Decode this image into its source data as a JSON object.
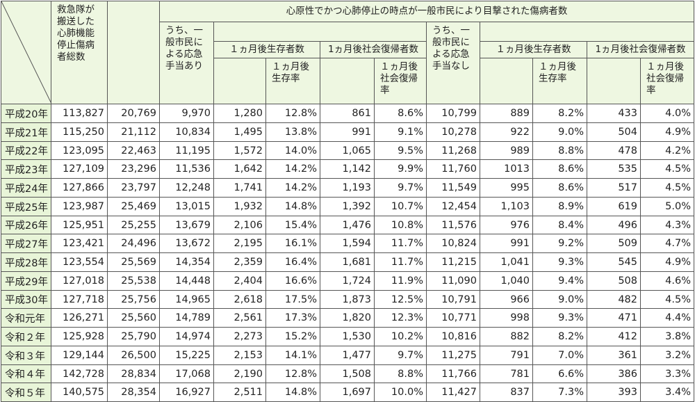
{
  "header": {
    "total_col": "救急隊が\n搬送した\n心肺機能\n停止傷病\n者総数",
    "witnessed_group": "心原性でかつ心肺停止の時点が一般市民により目撃された傷病者数",
    "with_aid": "うち、一\n般市民に\nよる応急\n手当あり",
    "survival_1m": "１ヵ月後生存者数",
    "survival_rate_1m": "１ヵ月後\n生存率",
    "social_return_1m": "1ヵ月後社会復帰者数",
    "social_return_rate_1m": "１ヵ月後\n社会復帰\n率",
    "without_aid": "うち、一\n般市民に\nよる応急\n手当なし",
    "survival_1m_b": "１ヵ月後生存者数",
    "survival_rate_1m_b": "１ヵ月後\n生存率",
    "social_return_1m_b": "1ヵ月後社会復帰者数",
    "social_return_rate_1m_b": "１ヵ月後\n社会復帰\n率"
  },
  "rows": [
    {
      "year": "平成20年",
      "values": [
        "113,827",
        "20,769",
        "9,970",
        "1,280",
        "12.8%",
        "861",
        "8.6%",
        "10,799",
        "889",
        "8.2%",
        "433",
        "4.0%"
      ]
    },
    {
      "year": "平成21年",
      "values": [
        "115,250",
        "21,112",
        "10,834",
        "1,495",
        "13.8%",
        "991",
        "9.1%",
        "10,278",
        "922",
        "9.0%",
        "504",
        "4.9%"
      ]
    },
    {
      "year": "平成22年",
      "values": [
        "123,095",
        "22,463",
        "11,195",
        "1,572",
        "14.0%",
        "1,065",
        "9.5%",
        "11,268",
        "989",
        "8.8%",
        "478",
        "4.2%"
      ]
    },
    {
      "year": "平成23年",
      "values": [
        "127,109",
        "23,296",
        "11,536",
        "1,642",
        "14.2%",
        "1,142",
        "9.9%",
        "11,760",
        "1013",
        "8.6%",
        "535",
        "4.5%"
      ]
    },
    {
      "year": "平成24年",
      "values": [
        "127,866",
        "23,797",
        "12,248",
        "1,741",
        "14.2%",
        "1,193",
        "9.7%",
        "11,549",
        "995",
        "8.6%",
        "517",
        "4.5%"
      ]
    },
    {
      "year": "平成25年",
      "values": [
        "123,987",
        "25,469",
        "13,015",
        "1,932",
        "14.8%",
        "1,392",
        "10.7%",
        "12,454",
        "1,103",
        "8.9%",
        "619",
        "5.0%"
      ]
    },
    {
      "year": "平成26年",
      "values": [
        "125,951",
        "25,255",
        "13,679",
        "2,106",
        "15.4%",
        "1,476",
        "10.8%",
        "11,576",
        "976",
        "8.4%",
        "496",
        "4.3%"
      ]
    },
    {
      "year": "平成27年",
      "values": [
        "123,421",
        "24,496",
        "13,672",
        "2,195",
        "16.1%",
        "1,594",
        "11.7%",
        "10,824",
        "991",
        "9.2%",
        "509",
        "4.7%"
      ]
    },
    {
      "year": "平成28年",
      "values": [
        "123,554",
        "25,569",
        "14,354",
        "2,359",
        "16.4%",
        "1,681",
        "11.7%",
        "11,215",
        "1,041",
        "9.3%",
        "545",
        "4.9%"
      ]
    },
    {
      "year": "平成29年",
      "values": [
        "127,018",
        "25,538",
        "14,448",
        "2,404",
        "16.6%",
        "1,724",
        "11.9%",
        "11,090",
        "1,040",
        "9.4%",
        "508",
        "4.6%"
      ]
    },
    {
      "year": "平成30年",
      "values": [
        "127,718",
        "25,756",
        "14,965",
        "2,618",
        "17.5%",
        "1,873",
        "12.5%",
        "10,791",
        "966",
        "9.0%",
        "482",
        "4.5%"
      ]
    },
    {
      "year": "令和元年",
      "values": [
        "126,271",
        "25,560",
        "14,789",
        "2,561",
        "17.3%",
        "1,820",
        "12.3%",
        "10,771",
        "998",
        "9.3%",
        "471",
        "4.4%"
      ]
    },
    {
      "year": "令和２年",
      "values": [
        "125,928",
        "25,790",
        "14,974",
        "2,273",
        "15.2%",
        "1,530",
        "10.2%",
        "10,816",
        "882",
        "8.2%",
        "412",
        "3.8%"
      ]
    },
    {
      "year": "令和３年",
      "values": [
        "129,144",
        "26,500",
        "15,225",
        "2,153",
        "14.1%",
        "1,477",
        "9.7%",
        "11,275",
        "791",
        "7.0%",
        "361",
        "3.2%"
      ]
    },
    {
      "year": "令和４年",
      "values": [
        "142,728",
        "28,834",
        "17,068",
        "2,190",
        "12.8%",
        "1,508",
        "8.8%",
        "11,766",
        "781",
        "6.6%",
        "386",
        "3.3%"
      ]
    },
    {
      "year": "令和５年",
      "values": [
        "140,575",
        "28,354",
        "16,927",
        "2,511",
        "14.8%",
        "1,697",
        "10.0%",
        "11,427",
        "837",
        "7.3%",
        "393",
        "3.4%"
      ]
    }
  ]
}
